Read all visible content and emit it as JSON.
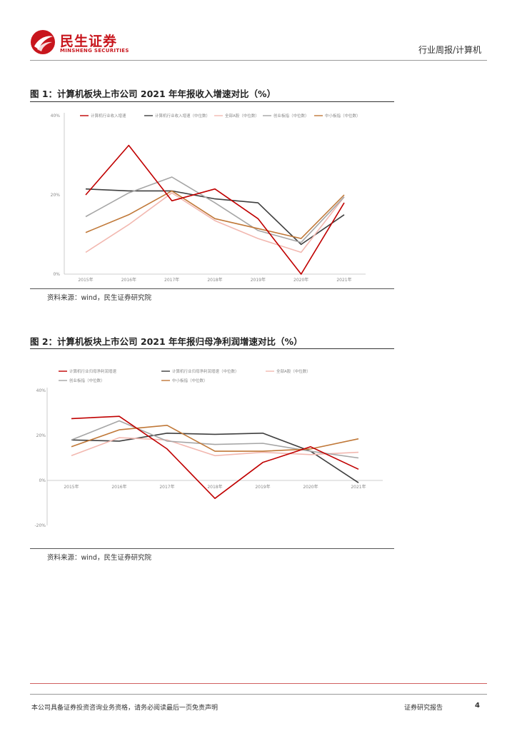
{
  "header": {
    "brand_cn": "民生证券",
    "brand_en": "MINSHENG SECURITIES",
    "section": "行业周报/计算机",
    "brand_color": "#c8161d"
  },
  "figure1": {
    "title": "图 1：计算机板块上市公司 2021 年年报收入增速对比（%）",
    "source": "资料来源：wind，民生证券研究院"
  },
  "figure2": {
    "title": "图 2：计算机板块上市公司 2021 年年报归母净利润增速对比（%）",
    "source": "资料来源：wind，民生证券研究院"
  },
  "chart_data": [
    {
      "type": "line",
      "x": [
        "2015年",
        "2016年",
        "2017年",
        "2018年",
        "2019年",
        "2020年",
        "2021年"
      ],
      "ylim": [
        0,
        40
      ],
      "yticks": [
        "0%",
        "20%",
        "40%"
      ],
      "grid": false,
      "legend_position": "top",
      "series": [
        {
          "name": "计算机行业收入增速",
          "color": "#c00000",
          "values": [
            20,
            32.5,
            18.5,
            21.5,
            14,
            0,
            18
          ]
        },
        {
          "name": "计算机行业收入增速（中位数）",
          "color": "#3f3f3f",
          "values": [
            21.5,
            21,
            21,
            19,
            18,
            7.5,
            15
          ]
        },
        {
          "name": "全部A股（中位数）",
          "color": "#f2b8b0",
          "values": [
            5.5,
            12.5,
            20.5,
            13.5,
            9,
            5.5,
            19.5
          ]
        },
        {
          "name": "创业板指（中位数）",
          "color": "#a6a6a6",
          "values": [
            14.5,
            20.5,
            24.5,
            18,
            11,
            8,
            19.5
          ]
        },
        {
          "name": "中小板指（中位数）",
          "color": "#c07838",
          "values": [
            10.5,
            15,
            21,
            14,
            11.5,
            9,
            20
          ]
        }
      ]
    },
    {
      "type": "line",
      "x": [
        "2015年",
        "2016年",
        "2017年",
        "2018年",
        "2019年",
        "2020年",
        "2021年"
      ],
      "ylim": [
        -20,
        40
      ],
      "yticks": [
        "-20%",
        "0%",
        "20%",
        "40%"
      ],
      "grid": false,
      "legend_position": "top",
      "series": [
        {
          "name": "计算机行业归母净利润增速",
          "color": "#c00000",
          "values": [
            27.5,
            28.5,
            14,
            -8,
            8,
            15,
            5
          ]
        },
        {
          "name": "计算机行业归母净利润增速（中位数）",
          "color": "#3f3f3f",
          "values": [
            18,
            17.5,
            21,
            20.5,
            21,
            13,
            -1
          ]
        },
        {
          "name": "全部A股（中位数）",
          "color": "#f2b8b0",
          "values": [
            11,
            19,
            18,
            11,
            12.5,
            11.5,
            12.5
          ]
        },
        {
          "name": "创业板指（中位数）",
          "color": "#a6a6a6",
          "values": [
            18,
            26.5,
            17.5,
            16,
            16.5,
            13,
            10
          ]
        },
        {
          "name": "中小板指（中位数）",
          "color": "#c07838",
          "values": [
            15,
            22.5,
            24.5,
            13,
            13,
            14,
            18.5
          ]
        }
      ]
    }
  ],
  "footer": {
    "disclaimer": "本公司具备证券投资咨询业务资格，请务必阅读最后一页免责声明",
    "report_type": "证券研究报告",
    "page_number": "4"
  }
}
